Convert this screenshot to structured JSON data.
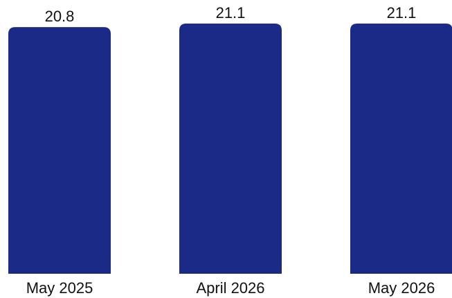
{
  "chart_data": {
    "type": "bar",
    "categories": [
      "May 2025",
      "April 2026",
      "May 2026"
    ],
    "values": [
      20.8,
      21.1,
      21.1
    ],
    "value_labels": [
      "20.8",
      "21.1",
      "21.1"
    ],
    "title": "",
    "xlabel": "",
    "ylabel": "",
    "ylim": [
      0,
      21.1
    ],
    "grid": false,
    "legend": "none",
    "bar_color": "#1c2a87"
  }
}
